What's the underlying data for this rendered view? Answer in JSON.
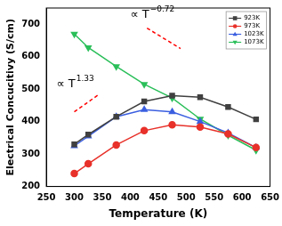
{
  "chart_data": {
    "type": "line",
    "x_label": "Temperature (K)",
    "y_label": "Electrical Concucitivy (S/cm)",
    "x": [
      300,
      325,
      375,
      425,
      475,
      525,
      575,
      625
    ],
    "series": [
      {
        "name": "923K",
        "color": "#404040",
        "marker": "square",
        "values": [
          330,
          360,
          415,
          462,
          480,
          475,
          445,
          407
        ]
      },
      {
        "name": "973K",
        "color": "#e8312a",
        "marker": "circle",
        "values": [
          240,
          270,
          328,
          372,
          390,
          383,
          362,
          320
        ]
      },
      {
        "name": "1023K",
        "color": "#3b5fe0",
        "marker": "triangle",
        "values": [
          325,
          355,
          415,
          437,
          430,
          400,
          365,
          320
        ]
      },
      {
        "name": "1073K",
        "color": "#2bbf5a",
        "marker": "triangle_down",
        "values": [
          670,
          628,
          570,
          515,
          473,
          408,
          358,
          312
        ]
      }
    ],
    "xlim": [
      250,
      650
    ],
    "xticks": [
      250,
      300,
      350,
      400,
      450,
      500,
      550,
      600,
      650
    ],
    "ylim": [
      200,
      750
    ],
    "yticks": [
      200,
      300,
      400,
      500,
      600,
      700
    ],
    "grid": false,
    "legend": "upper right",
    "annotations": [
      {
        "text": "∝ T",
        "superscript": "−0.72",
        "x": 400,
        "y": 728,
        "line": {
          "x": [
            430,
            490
          ],
          "y": [
            688,
            625
          ],
          "color": "#ff0000",
          "line_style": "dashed"
        }
      },
      {
        "text": "∝ T",
        "superscript": "1.33",
        "x": 268,
        "y": 515,
        "line": {
          "x": [
            300,
            345
          ],
          "y": [
            430,
            485
          ],
          "color": "#ff0000",
          "line_style": "dashed"
        }
      }
    ]
  }
}
